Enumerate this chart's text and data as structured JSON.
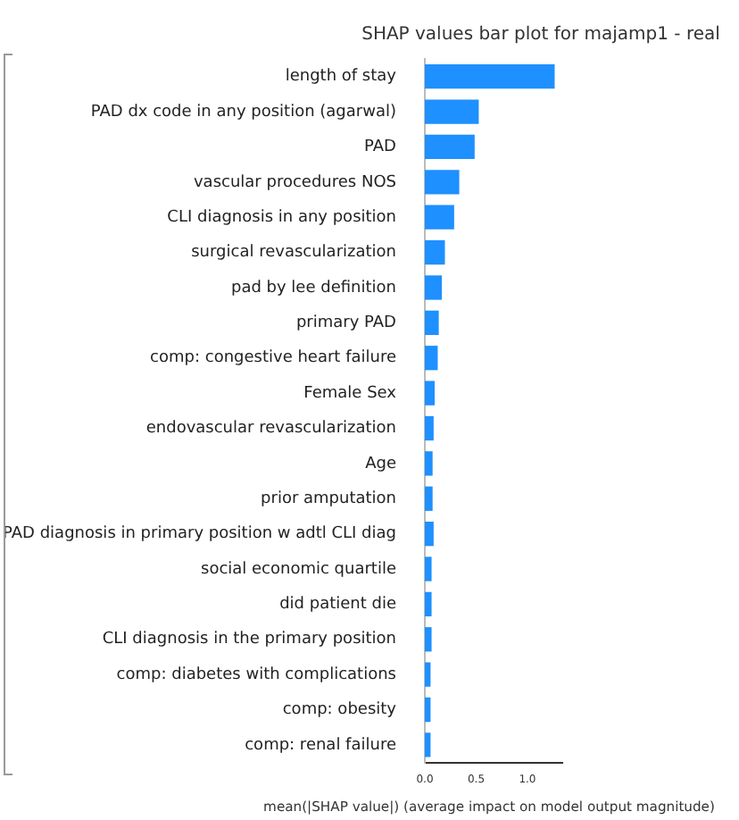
{
  "chart_data": {
    "type": "bar",
    "orientation": "horizontal",
    "title": "SHAP values bar plot for majamp1 - real",
    "xlabel": "mean(|SHAP value|) (average impact on model output magnitude)",
    "categories": [
      "length of stay",
      "PAD dx code in any position (agarwal)",
      "PAD",
      "vascular procedures NOS",
      "CLI diagnosis in any position",
      "surgical revascularization",
      "pad by lee definition",
      "primary PAD",
      "comp: congestive heart failure",
      "Female Sex",
      "endovascular revascularization",
      "Age",
      "prior amputation",
      "PAD diagnosis in primary position w adtl CLI diag",
      "social economic quartile",
      "did patient die",
      "CLI diagnosis in the primary position",
      "comp: diabetes with complications",
      "comp: obesity",
      "comp: renal failure"
    ],
    "values": [
      1.26,
      0.52,
      0.48,
      0.33,
      0.28,
      0.19,
      0.16,
      0.13,
      0.12,
      0.09,
      0.08,
      0.07,
      0.07,
      0.08,
      0.06,
      0.06,
      0.06,
      0.05,
      0.05,
      0.05
    ],
    "color": "#1e90ff",
    "xlim": [
      0,
      1.34
    ],
    "xticks": [
      {
        "value": 0,
        "label": "0.0"
      },
      {
        "value": 0.5,
        "label": "0.5"
      },
      {
        "value": 1,
        "label": "1.0"
      }
    ],
    "grid": false,
    "legend": false
  }
}
